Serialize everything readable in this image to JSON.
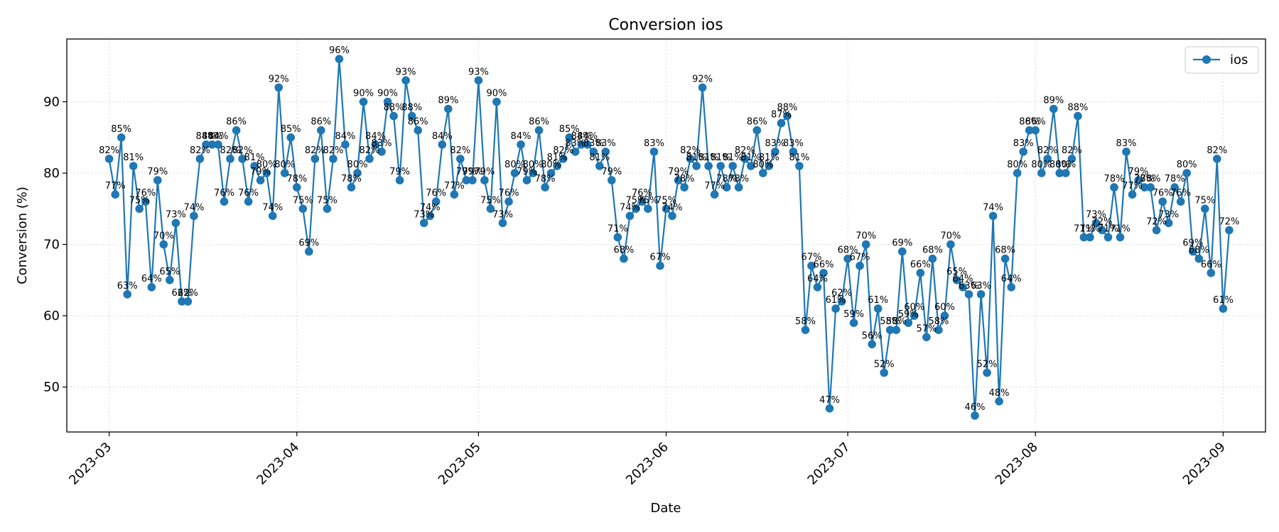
{
  "chart_data": {
    "type": "line",
    "title": "Conversion ios",
    "xlabel": "Date",
    "ylabel": "Conversion (%)",
    "legend_position": "top-right",
    "grid": true,
    "x_start": "2023-03-01",
    "x_end": "2023-08-31",
    "xlim": [
      "2023-02-22",
      "2023-09-08"
    ],
    "ylim": [
      43.7,
      98.8
    ],
    "x_ticks": [
      "2023-03-01",
      "2023-04-01",
      "2023-05-01",
      "2023-06-01",
      "2023-07-01",
      "2023-08-01",
      "2023-09-01"
    ],
    "x_tick_labels": [
      "2023-03",
      "2023-04",
      "2023-05",
      "2023-06",
      "2023-07",
      "2023-08",
      "2023-09"
    ],
    "y_ticks": [
      50,
      60,
      70,
      80,
      90
    ],
    "y_tick_labels": [
      "50",
      "60",
      "70",
      "80",
      "90"
    ],
    "series": [
      {
        "name": "ios",
        "color": "#1f77b4",
        "values": [
          82,
          77,
          85,
          63,
          81,
          75,
          76,
          64,
          79,
          70,
          65,
          73,
          62,
          62,
          74,
          82,
          84,
          84,
          84,
          76,
          82,
          86,
          82,
          76,
          81,
          79,
          80,
          74,
          92,
          80,
          85,
          78,
          75,
          69,
          82,
          86,
          75,
          82,
          96,
          84,
          78,
          80,
          90,
          82,
          84,
          83,
          90,
          88,
          79,
          93,
          88,
          86,
          73,
          74,
          76,
          84,
          89,
          77,
          82,
          79,
          79,
          93,
          79,
          75,
          90,
          73,
          76,
          80,
          84,
          79,
          80,
          86,
          78,
          80,
          81,
          82,
          85,
          83,
          84,
          84,
          83,
          81,
          83,
          79,
          71,
          68,
          74,
          75,
          76,
          75,
          83,
          67,
          75,
          74,
          79,
          78,
          82,
          81,
          92,
          81,
          77,
          81,
          78,
          81,
          78,
          82,
          81,
          86,
          80,
          81,
          83,
          87,
          88,
          83,
          81,
          58,
          67,
          64,
          66,
          47,
          61,
          62,
          68,
          59,
          67,
          70,
          56,
          61,
          52,
          58,
          58,
          69,
          59,
          60,
          66,
          57,
          68,
          58,
          60,
          70,
          65,
          64,
          63,
          46,
          63,
          52,
          74,
          48,
          68,
          64,
          80,
          83,
          86,
          86,
          80,
          82,
          89,
          80,
          80,
          82,
          88,
          71,
          71,
          73,
          72,
          71,
          78,
          71,
          83,
          77,
          79,
          78,
          78,
          72,
          76,
          73,
          78,
          76,
          80,
          69,
          68,
          75,
          66,
          82,
          61,
          72
        ]
      }
    ]
  }
}
